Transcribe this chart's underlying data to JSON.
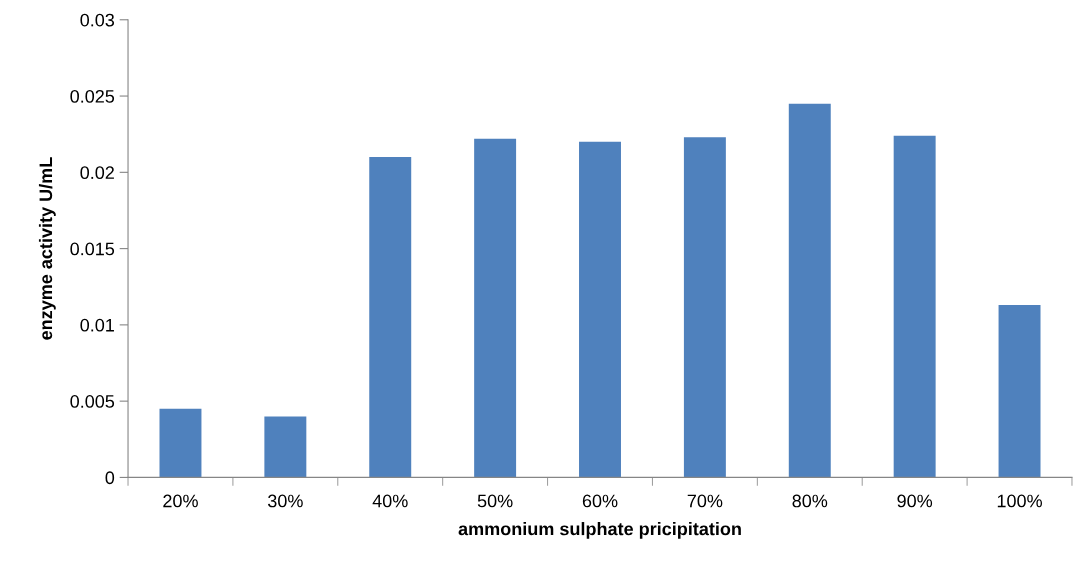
{
  "chart_data": {
    "type": "bar",
    "xlabel": "ammonium sulphate pricipitation",
    "ylabel": "enzyme activity U/mL",
    "categories": [
      "20%",
      "30%",
      "40%",
      "50%",
      "60%",
      "70%",
      "80%",
      "90%",
      "100%"
    ],
    "values": [
      0.0045,
      0.004,
      0.021,
      0.0222,
      0.022,
      0.0223,
      0.0245,
      0.0224,
      0.0113
    ],
    "color": "#4f81bd",
    "ylim": [
      0,
      0.03
    ],
    "yticks": [
      0,
      0.005,
      0.01,
      0.015,
      0.02,
      0.025,
      0.03
    ],
    "grid": false,
    "legend": false
  }
}
